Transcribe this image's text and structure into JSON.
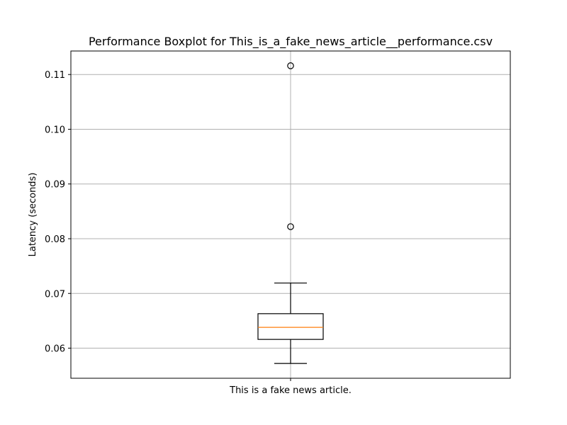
{
  "chart_data": {
    "type": "boxplot",
    "title": "Performance Boxplot for This_is_a_fake_news_article__performance.csv",
    "xlabel": "",
    "ylabel": "Latency (seconds)",
    "categories": [
      "This is a fake news article."
    ],
    "ylim": [
      0.0545,
      0.1143
    ],
    "yticks": [
      0.06,
      0.07,
      0.08,
      0.09,
      0.1,
      0.11
    ],
    "ytick_labels": [
      "0.06",
      "0.07",
      "0.08",
      "0.09",
      "0.10",
      "0.11"
    ],
    "grid": true,
    "boxes": [
      {
        "category": "This is a fake news article.",
        "whisker_low": 0.0572,
        "q1": 0.0616,
        "median": 0.0638,
        "q3": 0.0663,
        "whisker_high": 0.0719,
        "outliers": [
          0.0822,
          0.1116
        ]
      }
    ],
    "colors": {
      "box": "#000000",
      "median": "#ff7f0e",
      "grid": "#b0b0b0"
    }
  }
}
